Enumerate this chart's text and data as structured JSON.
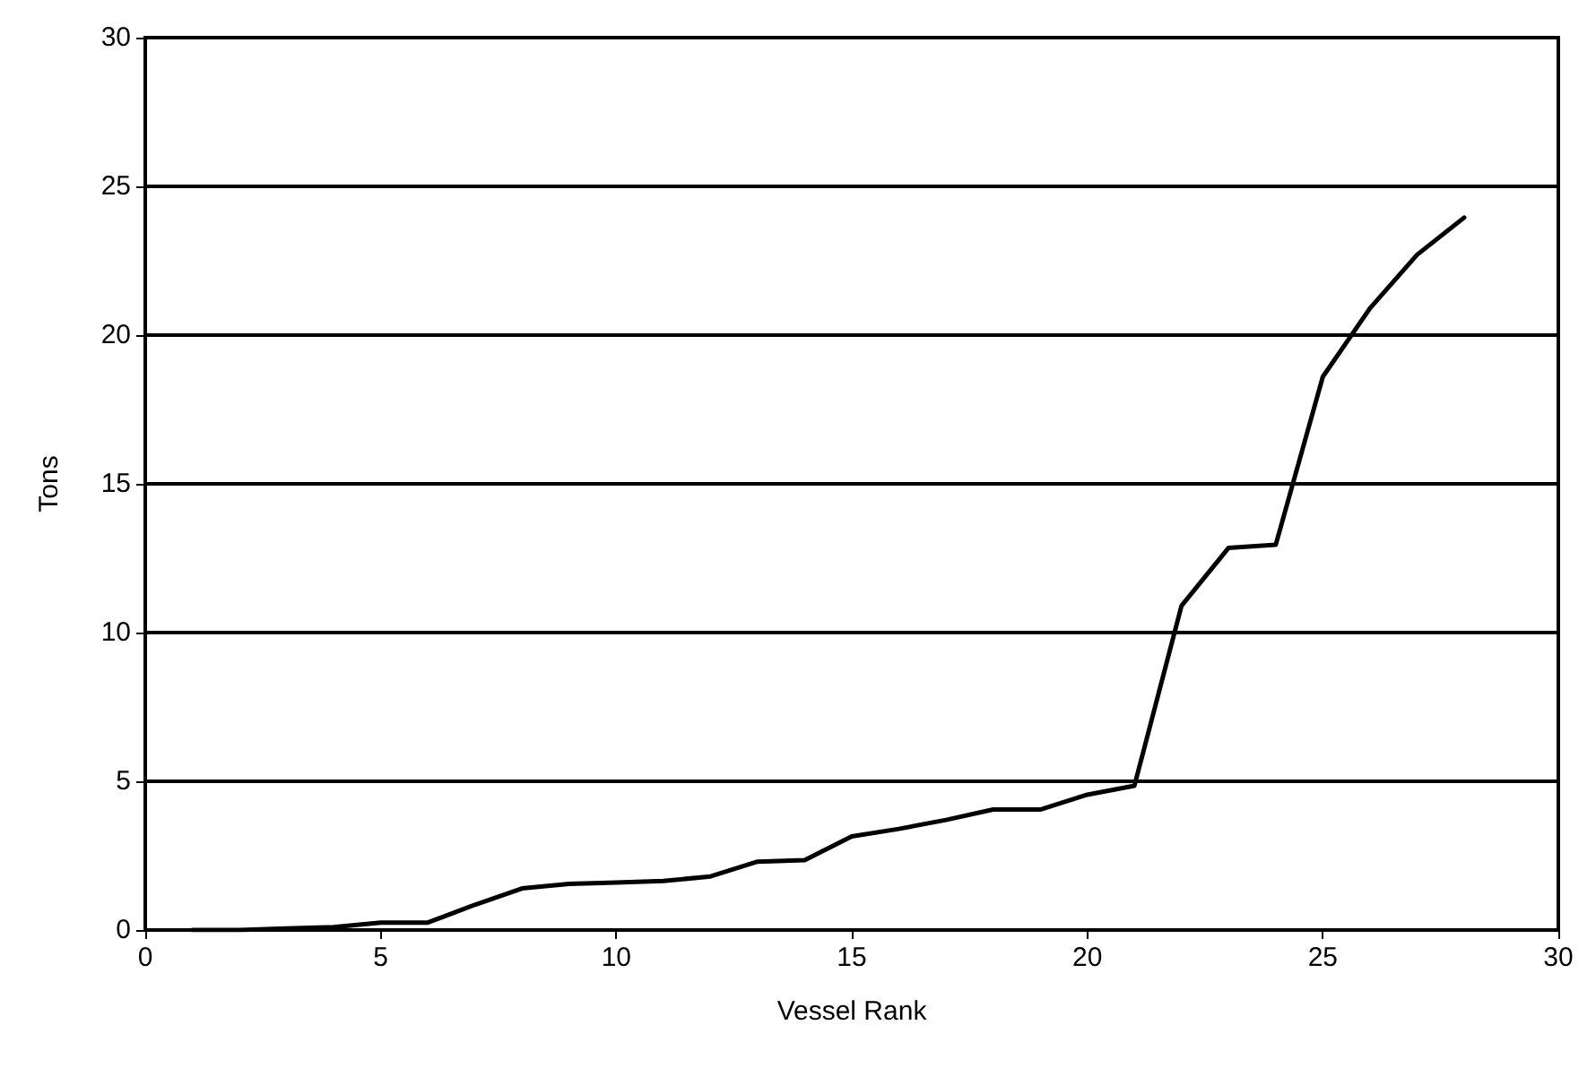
{
  "chart_data": {
    "type": "line",
    "xlabel": "Vessel Rank",
    "ylabel": "Tons",
    "x": [
      1,
      2,
      3,
      4,
      5,
      6,
      7,
      8,
      9,
      10,
      11,
      12,
      13,
      14,
      15,
      16,
      17,
      18,
      19,
      20,
      21,
      22,
      23,
      24,
      25,
      26,
      27,
      28
    ],
    "series": [
      {
        "color": "#000000",
        "values": [
          0,
          0,
          0.05,
          0.1,
          0.25,
          0.25,
          0.85,
          1.4,
          1.55,
          1.6,
          1.65,
          1.8,
          2.3,
          2.35,
          3.15,
          3.4,
          3.7,
          4.05,
          4.05,
          4.55,
          4.85,
          10.9,
          12.85,
          12.95,
          18.6,
          20.9,
          22.7,
          23.95
        ]
      }
    ],
    "xlim": [
      0,
      30
    ],
    "xticks": [
      0,
      5,
      10,
      15,
      20,
      25,
      30
    ],
    "ylim": [
      0,
      30
    ],
    "yticks": [
      0,
      5,
      10,
      15,
      20,
      25,
      30
    ],
    "grid": "y",
    "marker": "none",
    "line_style": "solid"
  }
}
